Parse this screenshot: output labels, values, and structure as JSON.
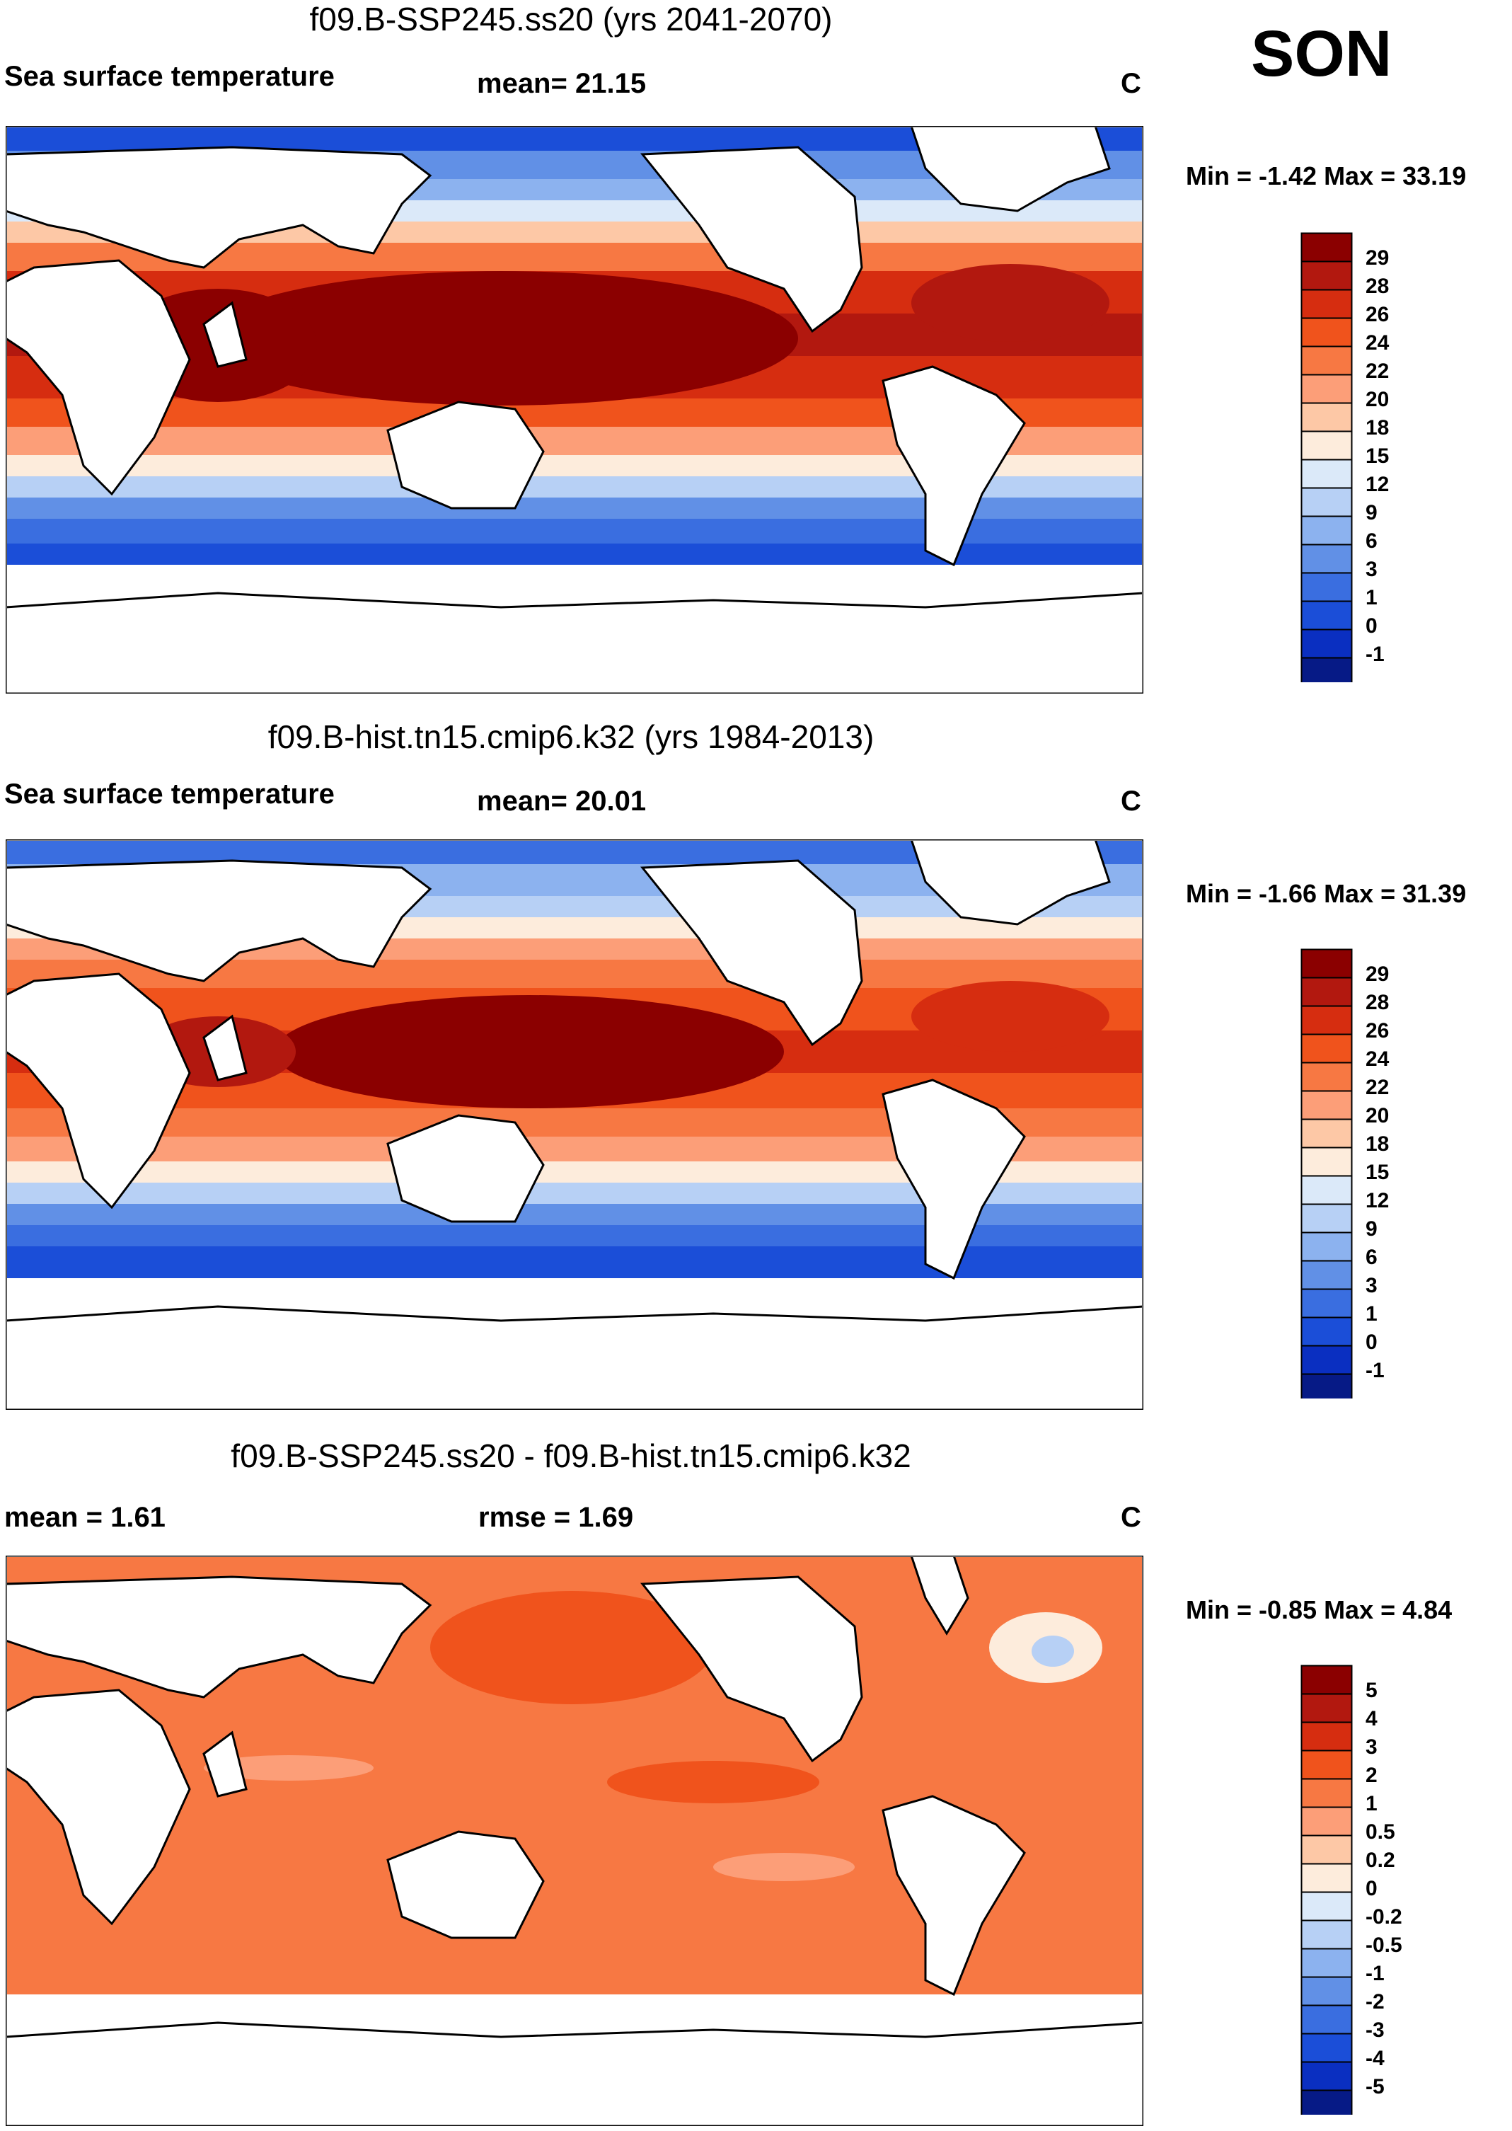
{
  "season": "SON",
  "panels": [
    {
      "title": "f09.B-SSP245.ss20 (yrs 2041-2070)",
      "left_label": "Sea surface temperature",
      "mid_label": "mean=  21.15",
      "units": "C",
      "minmax": "Min =  -1.42 Max =  33.19",
      "colorbar": {
        "labels": [
          "29",
          "28",
          "26",
          "24",
          "22",
          "20",
          "18",
          "15",
          "12",
          "9",
          "6",
          "3",
          "1",
          "0",
          "-1"
        ],
        "colors": [
          "#8b0000",
          "#b2180f",
          "#d62d10",
          "#f0531c",
          "#f77843",
          "#fc9e78",
          "#fdc8a6",
          "#fdecdc",
          "#dbe9f9",
          "#b7d0f5",
          "#8cb2ef",
          "#6190e6",
          "#3a6ee0",
          "#1b4ed8",
          "#0a2fc1",
          "#061a86"
        ]
      }
    },
    {
      "title": "f09.B-hist.tn15.cmip6.k32 (yrs 1984-2013)",
      "left_label": "Sea surface temperature",
      "mid_label": "mean=  20.01",
      "units": "C",
      "minmax": "Min =  -1.66 Max =  31.39",
      "colorbar": {
        "labels": [
          "29",
          "28",
          "26",
          "24",
          "22",
          "20",
          "18",
          "15",
          "12",
          "9",
          "6",
          "3",
          "1",
          "0",
          "-1"
        ],
        "colors": [
          "#8b0000",
          "#b2180f",
          "#d62d10",
          "#f0531c",
          "#f77843",
          "#fc9e78",
          "#fdc8a6",
          "#fdecdc",
          "#dbe9f9",
          "#b7d0f5",
          "#8cb2ef",
          "#6190e6",
          "#3a6ee0",
          "#1b4ed8",
          "#0a2fc1",
          "#061a86"
        ]
      }
    },
    {
      "title": "f09.B-SSP245.ss20 - f09.B-hist.tn15.cmip6.k32",
      "left_label": "mean =    1.61",
      "mid_label": "rmse =    1.69",
      "units": "C",
      "minmax": "Min =  -0.85 Max =   4.84",
      "colorbar": {
        "labels": [
          "5",
          "4",
          "3",
          "2",
          "1",
          "0.5",
          "0.2",
          "0",
          "-0.2",
          "-0.5",
          "-1",
          "-2",
          "-3",
          "-4",
          "-5"
        ],
        "colors": [
          "#8b0000",
          "#b2180f",
          "#d62d10",
          "#f0531c",
          "#f77843",
          "#fc9e78",
          "#fdc8a6",
          "#fdecdc",
          "#dbe9f9",
          "#b7d0f5",
          "#8cb2ef",
          "#6190e6",
          "#3a6ee0",
          "#1b4ed8",
          "#0a2fc1",
          "#061a86"
        ]
      }
    }
  ]
}
